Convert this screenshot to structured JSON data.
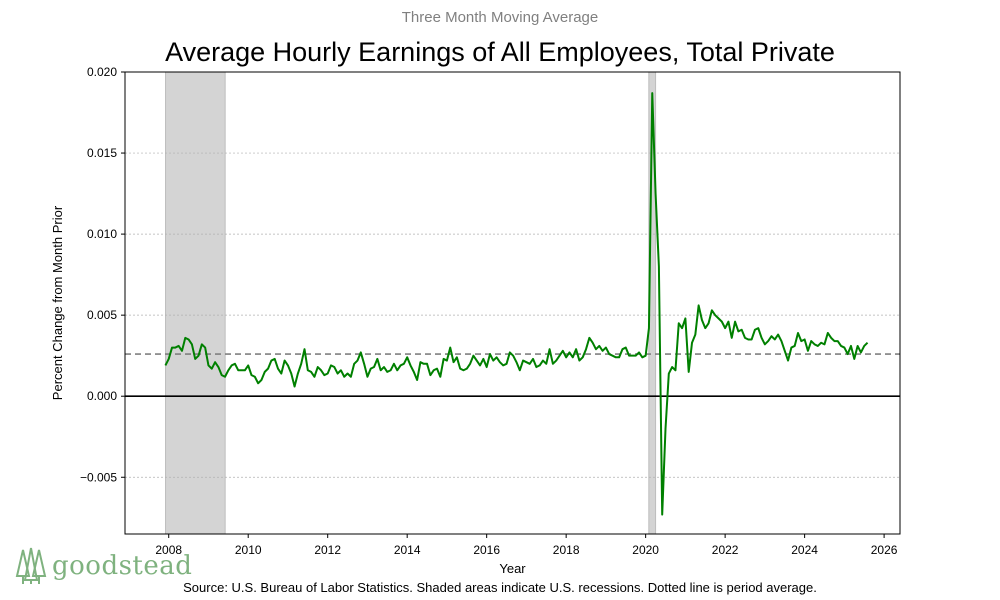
{
  "header": {
    "subtitle": "Three Month Moving Average",
    "title": "Average Hourly Earnings of All Employees, Total Private"
  },
  "footer": {
    "source": "Source: U.S. Bureau of Labor Statistics. Shaded areas indicate U.S. recessions. Dotted line is period average."
  },
  "logo": {
    "text": "goodstead",
    "icon": "pine-tree-icon"
  },
  "colors": {
    "line": "#008000",
    "average": "#808080",
    "recession": "#d4d4d4",
    "zero": "#000000",
    "grid": "#b0b0b0"
  },
  "chart_data": {
    "type": "line",
    "title": "Average Hourly Earnings of All Employees, Total Private",
    "subtitle": "Three Month Moving Average",
    "xlabel": "Year",
    "ylabel": "Percent Change from Month Prior",
    "xlim": [
      2006.9,
      2026.4
    ],
    "ylim": [
      -0.0085,
      0.02
    ],
    "x_ticks": [
      2008,
      2010,
      2012,
      2014,
      2016,
      2018,
      2020,
      2022,
      2024,
      2026
    ],
    "y_ticks": [
      -0.005,
      0.0,
      0.005,
      0.01,
      0.015,
      0.02
    ],
    "y_tick_labels": [
      "−0.005",
      "0.000",
      "0.005",
      "0.010",
      "0.015",
      "0.020"
    ],
    "grid": "horizontal dotted",
    "average_line": 0.0026,
    "zero_line": 0.0,
    "recessions": [
      [
        2007.92,
        2009.42
      ],
      [
        2020.08,
        2020.25
      ]
    ],
    "series": [
      {
        "x_start": "2007-12",
        "frequency": "monthly",
        "values": [
          0.0019,
          0.0023,
          0.003,
          0.003,
          0.0031,
          0.0028,
          0.0036,
          0.0035,
          0.0032,
          0.0023,
          0.0025,
          0.0032,
          0.003,
          0.0019,
          0.0017,
          0.0021,
          0.0018,
          0.0013,
          0.0012,
          0.0016,
          0.0019,
          0.002,
          0.0016,
          0.0016,
          0.0016,
          0.0019,
          0.0013,
          0.0012,
          0.0008,
          0.001,
          0.0015,
          0.0017,
          0.0022,
          0.0023,
          0.0017,
          0.0014,
          0.0022,
          0.0019,
          0.0014,
          0.0006,
          0.0014,
          0.002,
          0.0029,
          0.0016,
          0.0015,
          0.0012,
          0.0018,
          0.0016,
          0.0013,
          0.0014,
          0.0019,
          0.0018,
          0.0014,
          0.0016,
          0.0012,
          0.0014,
          0.0012,
          0.002,
          0.0022,
          0.0027,
          0.002,
          0.0012,
          0.0017,
          0.0018,
          0.0023,
          0.0016,
          0.0018,
          0.0015,
          0.0016,
          0.002,
          0.0016,
          0.0019,
          0.002,
          0.0024,
          0.0019,
          0.0015,
          0.001,
          0.0021,
          0.002,
          0.002,
          0.0013,
          0.0016,
          0.0017,
          0.0012,
          0.0023,
          0.0022,
          0.003,
          0.0021,
          0.0024,
          0.0017,
          0.0016,
          0.0017,
          0.002,
          0.0025,
          0.0022,
          0.0019,
          0.0023,
          0.0018,
          0.0026,
          0.0022,
          0.0024,
          0.0021,
          0.0019,
          0.002,
          0.0027,
          0.0025,
          0.0021,
          0.0016,
          0.0022,
          0.0021,
          0.002,
          0.0023,
          0.0018,
          0.0019,
          0.0022,
          0.002,
          0.0029,
          0.002,
          0.0022,
          0.0025,
          0.0028,
          0.0024,
          0.0027,
          0.0024,
          0.0029,
          0.0022,
          0.0024,
          0.0029,
          0.0036,
          0.0033,
          0.0029,
          0.0031,
          0.0028,
          0.003,
          0.0026,
          0.0025,
          0.0024,
          0.0024,
          0.0029,
          0.003,
          0.0025,
          0.0025,
          0.0025,
          0.0027,
          0.0024,
          0.0025,
          0.0042,
          0.0187,
          0.0125,
          0.008,
          -0.0073,
          -0.002,
          0.0014,
          0.0018,
          0.0016,
          0.0045,
          0.0042,
          0.0048,
          0.0015,
          0.0033,
          0.0038,
          0.0056,
          0.0047,
          0.0042,
          0.0045,
          0.0053,
          0.005,
          0.0048,
          0.0046,
          0.0042,
          0.0046,
          0.0036,
          0.0046,
          0.004,
          0.0041,
          0.0036,
          0.0035,
          0.0035,
          0.0041,
          0.0042,
          0.0036,
          0.0032,
          0.0034,
          0.0037,
          0.0035,
          0.0038,
          0.0034,
          0.0028,
          0.0022,
          0.003,
          0.0031,
          0.0039,
          0.0034,
          0.0035,
          0.0028,
          0.0034,
          0.0032,
          0.0031,
          0.0033,
          0.0032,
          0.0039,
          0.0036,
          0.0034,
          0.0034,
          0.0031,
          0.003,
          0.0026,
          0.0031,
          0.0023,
          0.0031,
          0.0027,
          0.0031,
          0.0033
        ]
      }
    ]
  }
}
